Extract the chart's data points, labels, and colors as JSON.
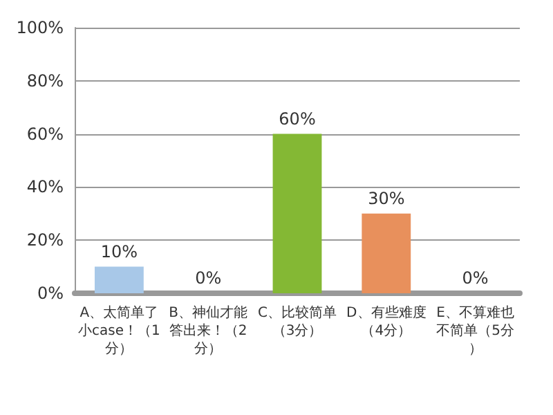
{
  "chart_data": {
    "type": "bar",
    "categories": [
      "A、太简单了小case！（1分）",
      "B、神仙才能答出来！（2分）",
      "C、比较简单（3分）",
      "D、有些难度（4分）",
      "E、不算难也不简单（5分）"
    ],
    "values": [
      10,
      0,
      60,
      30,
      0
    ],
    "colors": [
      "#a8c8e8",
      "#f0c850",
      "#84b834",
      "#e8905c",
      "#38a8a8"
    ],
    "value_labels": [
      "10%",
      "0%",
      "60%",
      "30%",
      "0%"
    ],
    "ylim": [
      0,
      100
    ],
    "yticks": [
      {
        "value": 0,
        "label": "0%"
      },
      {
        "value": 20,
        "label": "20%"
      },
      {
        "value": 40,
        "label": "40%"
      },
      {
        "value": 60,
        "label": "60%"
      },
      {
        "value": 80,
        "label": "80%"
      },
      {
        "value": 100,
        "label": "100%"
      }
    ],
    "grid": true
  }
}
